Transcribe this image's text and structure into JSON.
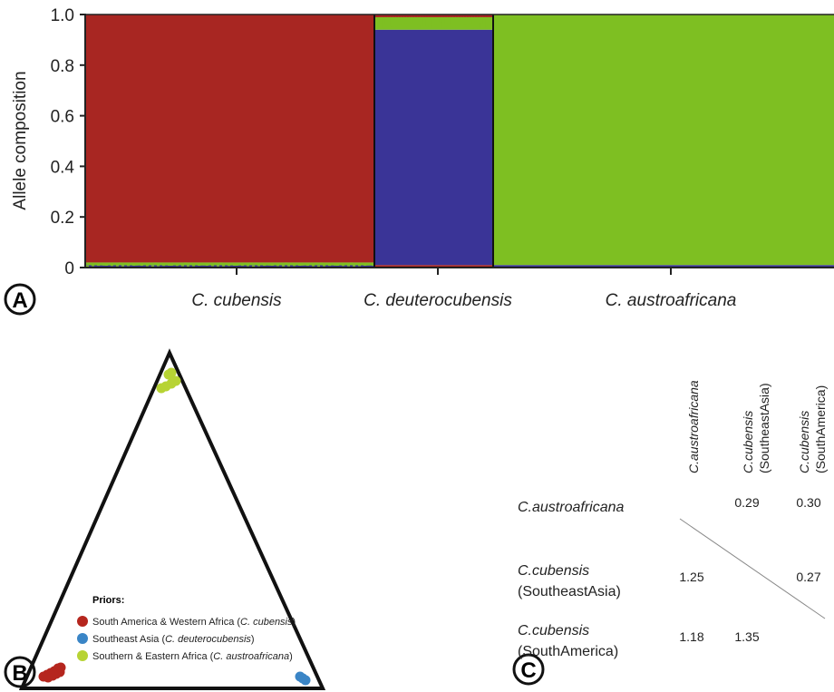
{
  "panels": {
    "a": {
      "letter": "A"
    },
    "b": {
      "letter": "B"
    },
    "c": {
      "letter": "C"
    }
  },
  "chart_data": [
    {
      "type": "bar",
      "subtype": "stacked-structure",
      "ylabel": "Allele composition",
      "ylim": [
        0,
        1.0
      ],
      "yticks": [
        "0",
        "0.2",
        "0.4",
        "0.6",
        "0.8",
        "1.0"
      ],
      "groups": [
        {
          "name": "C. cubensis",
          "share": [
            0.98,
            0.01,
            0.01
          ],
          "band": 0.02
        },
        {
          "name": "C. deuterocubensis",
          "share": [
            0.01,
            0.93,
            0.06
          ],
          "band": 0.05
        },
        {
          "name": "C. austroafricana",
          "share": [
            0.0,
            0.01,
            0.99
          ],
          "band": 0.01
        }
      ],
      "colors": {
        "cluster_red": "#a82622",
        "cluster_blue": "#3a3497",
        "cluster_green": "#7ebf22"
      }
    },
    {
      "type": "scatter",
      "subtype": "ternary",
      "legend_title": "Priors:",
      "series": [
        {
          "name": "South America & Western Africa",
          "species": "C. cubensis",
          "color": "#b5261e",
          "vertex": "bottom-left"
        },
        {
          "name": "Southeast Asia",
          "species": "C. deuterocubensis",
          "color": "#3a85c6",
          "vertex": "bottom-right"
        },
        {
          "name": "Southern & Eastern Africa",
          "species": "C. austroafricana",
          "color": "#b7d334",
          "vertex": "top"
        }
      ],
      "legend_position": "bottom"
    },
    {
      "type": "table",
      "subtype": "pairwise-matrix",
      "columns": [
        {
          "line1": "C.austroafricana",
          "line2": ""
        },
        {
          "line1": "C.cubensis",
          "line2": "(SoutheastAsia)"
        },
        {
          "line1": "C.cubensis",
          "line2": "(SouthAmerica)"
        }
      ],
      "rows": [
        {
          "line1": "C.austroafricana",
          "line2": "",
          "cells": [
            "",
            "0.29",
            "0.30"
          ]
        },
        {
          "line1": "C.cubensis",
          "line2": "(SoutheastAsia)",
          "cells": [
            "1.25",
            "",
            "0.27"
          ]
        },
        {
          "line1": "C.cubensis",
          "line2": "(SouthAmerica)",
          "cells": [
            "1.18",
            "1.35",
            ""
          ]
        }
      ]
    }
  ]
}
